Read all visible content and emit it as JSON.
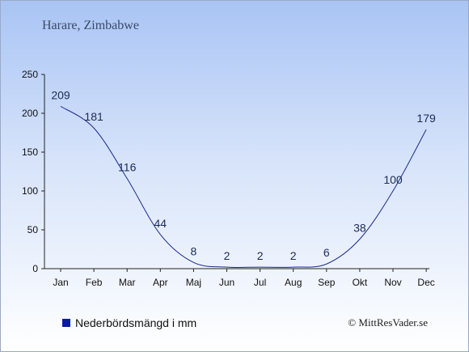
{
  "header": {
    "location": "Harare, Zimbabwe"
  },
  "legend": {
    "label": "Nederbördsmängd i mm",
    "color": "#0a1aa8"
  },
  "credit": "© MittResVader.se",
  "chart_data": {
    "type": "line",
    "categories": [
      "Jan",
      "Feb",
      "Mar",
      "Apr",
      "Maj",
      "Jun",
      "Jul",
      "Aug",
      "Sep",
      "Okt",
      "Nov",
      "Dec"
    ],
    "series": [
      {
        "name": "Nederbördsmängd i mm",
        "values": [
          209,
          181,
          116,
          44,
          8,
          2,
          2,
          2,
          6,
          38,
          100,
          179
        ],
        "color": "#1c2a8c"
      }
    ],
    "title": "Harare, Zimbabwe",
    "ylim": [
      0,
      250
    ],
    "yticks": [
      0,
      50,
      100,
      150,
      200,
      250
    ],
    "grid": false,
    "legend_position": "bottom-left"
  }
}
